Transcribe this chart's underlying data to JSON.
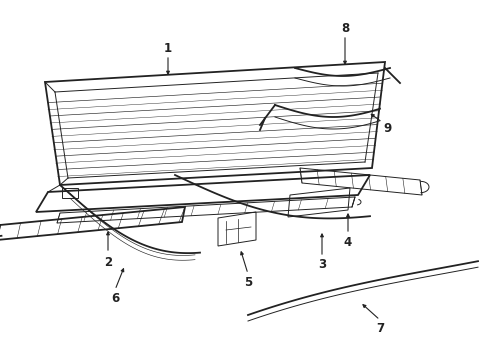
{
  "background_color": "#ffffff",
  "line_color": "#222222",
  "figsize": [
    4.9,
    3.6
  ],
  "dpi": 100,
  "label_fontsize": 8.5,
  "label_fontweight": "bold"
}
